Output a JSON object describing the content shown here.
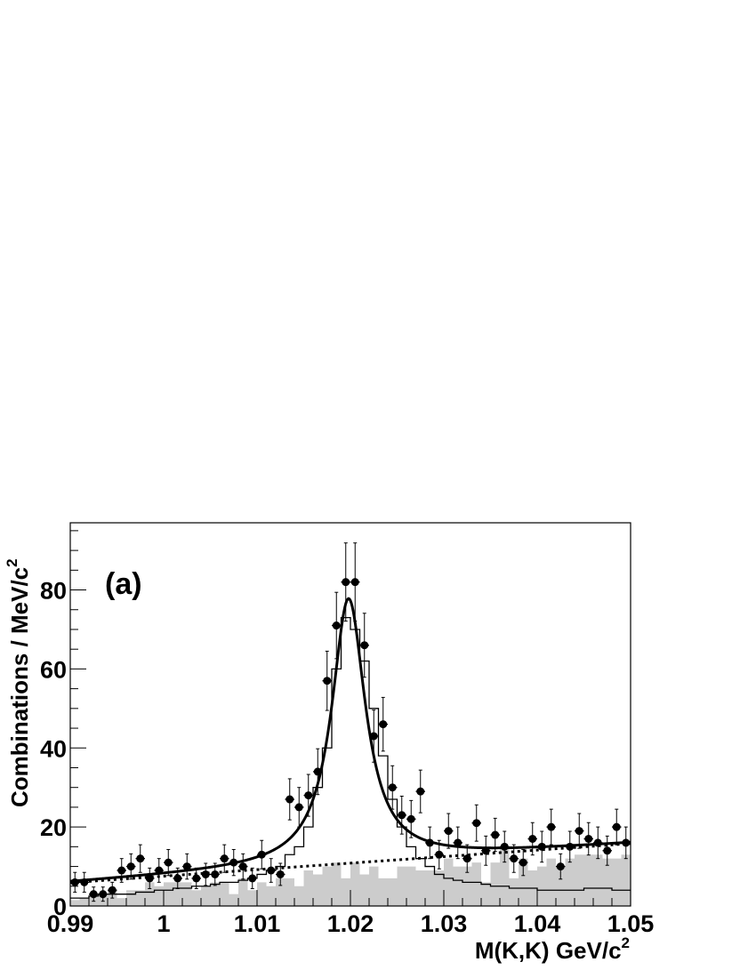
{
  "chart_data": {
    "type": "scatter",
    "panel_label": "(a)",
    "xlabel": "M(K,K)   GeV/c",
    "xlabel_sup": "2",
    "ylabel": "Combinations / MeV/c",
    "ylabel_sup": "2",
    "xlim": [
      0.99,
      1.05
    ],
    "ylim": [
      0,
      97
    ],
    "xticks": [
      0.99,
      1.0,
      1.01,
      1.02,
      1.03,
      1.04,
      1.05
    ],
    "xtick_labels": [
      "0.99",
      "1",
      "1.01",
      "1.02",
      "1.03",
      "1.04",
      "1.05"
    ],
    "yticks": [
      0,
      20,
      40,
      60,
      80
    ],
    "ytick_labels": [
      "0",
      "20",
      "40",
      "60",
      "80"
    ],
    "bin_edges_start": 0.99,
    "bin_width": 0.001,
    "series": [
      {
        "kind": "data_points",
        "style": "black filled circles with error bars",
        "x": [
          0.9905,
          0.9915,
          0.9925,
          0.9935,
          0.9945,
          0.9955,
          0.9965,
          0.9975,
          0.9985,
          0.9995,
          1.0005,
          1.0015,
          1.0025,
          1.0035,
          1.0045,
          1.0055,
          1.0065,
          1.0075,
          1.0085,
          1.0095,
          1.0105,
          1.0115,
          1.0125,
          1.0135,
          1.0145,
          1.0155,
          1.0165,
          1.0175,
          1.0185,
          1.0195,
          1.0205,
          1.0215,
          1.0225,
          1.0235,
          1.0245,
          1.0255,
          1.0265,
          1.0275,
          1.0285,
          1.0295,
          1.0305,
          1.0315,
          1.0325,
          1.0335,
          1.0345,
          1.0355,
          1.0365,
          1.0375,
          1.0385,
          1.0395,
          1.0405,
          1.0415,
          1.0425,
          1.0435,
          1.0445,
          1.0455,
          1.0465,
          1.0475,
          1.0485,
          1.0495
        ],
        "y": [
          6,
          6,
          3,
          3,
          4,
          9,
          10,
          12,
          7,
          9,
          11,
          7,
          10,
          7,
          8,
          8,
          12,
          11,
          10,
          7,
          13,
          9,
          8,
          27,
          25,
          28,
          34,
          57,
          71,
          82,
          82,
          66,
          43,
          46,
          30,
          23,
          22,
          29,
          16,
          13,
          19,
          16,
          12,
          21,
          14,
          18,
          15,
          12,
          11,
          17,
          15,
          20,
          10,
          15,
          19,
          17,
          16,
          14,
          20,
          16
        ],
        "yerr": [
          2.5,
          2.5,
          1.8,
          1.8,
          2,
          3,
          3.2,
          3.5,
          2.6,
          3,
          3.3,
          2.6,
          3.2,
          2.6,
          2.8,
          2.8,
          3.5,
          3.3,
          3.2,
          2.6,
          3.6,
          3,
          2.8,
          5.2,
          5,
          5.3,
          5.8,
          7.5,
          8.4,
          9.9,
          9.9,
          8.1,
          6.6,
          6.8,
          5.5,
          4.8,
          4.7,
          5.4,
          4,
          3.6,
          4.4,
          4,
          3.5,
          4.6,
          3.7,
          4.2,
          3.9,
          3.5,
          3.3,
          4.1,
          3.9,
          4.5,
          3.2,
          3.9,
          4.4,
          4.1,
          4,
          3.7,
          4.5,
          4
        ]
      },
      {
        "kind": "fit",
        "style": "thick black solid curve",
        "model": "Breit-Wigner peak on linear background",
        "peak_mass": 1.0198,
        "width": 0.0044,
        "peak_height": 67,
        "bkg_at_start": 5.9,
        "bkg_slope_per_GeV": 165
      },
      {
        "kind": "background_fit",
        "style": "thick black dotted line",
        "x": [
          0.99,
          1.05
        ],
        "y": [
          5.9,
          15.8
        ]
      },
      {
        "kind": "mc_signal_histogram",
        "style": "thin black step line",
        "values": [
          2,
          2,
          2.5,
          3,
          3,
          3,
          3,
          3.5,
          3.5,
          4,
          4,
          4.5,
          4.5,
          5,
          5,
          5.5,
          6,
          6,
          6.5,
          7,
          8,
          9,
          10,
          13,
          15,
          20,
          30,
          40,
          60,
          73,
          70,
          62,
          50,
          38,
          27,
          20,
          15,
          12,
          10,
          8,
          7,
          6.5,
          6,
          6,
          5.5,
          5,
          5,
          4.5,
          4.5,
          4.5,
          4,
          4,
          4,
          4,
          4,
          4.5,
          4.5,
          4.5,
          4,
          4
        ]
      },
      {
        "kind": "mc_background_histogram",
        "style": "light grey filled histogram",
        "values": [
          1.5,
          2,
          3,
          3,
          4,
          2,
          4,
          4,
          6,
          5,
          6,
          6,
          6,
          4,
          5,
          6,
          6,
          3,
          7,
          4,
          6,
          5,
          7,
          7,
          5,
          9,
          8,
          10,
          11,
          7,
          11,
          8,
          10,
          7,
          7,
          10,
          10,
          9,
          9,
          9,
          12,
          10,
          10,
          11,
          6,
          11,
          15,
          7,
          12,
          9,
          10,
          12,
          10,
          12,
          13,
          13,
          13,
          12,
          12,
          13
        ]
      }
    ]
  }
}
